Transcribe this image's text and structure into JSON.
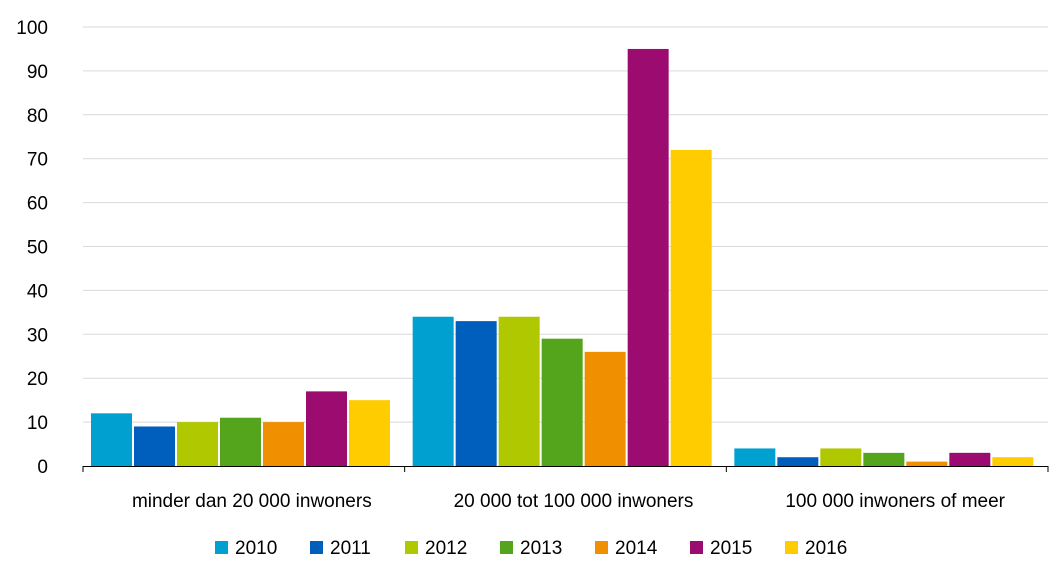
{
  "chart_data": {
    "type": "bar",
    "categories": [
      "minder dan 20 000 inwoners",
      "20 000 tot 100 000 inwoners",
      "100 000 inwoners of meer"
    ],
    "series": [
      {
        "name": "2010",
        "color": "#00a0d0",
        "values": [
          12,
          34,
          4
        ]
      },
      {
        "name": "2011",
        "color": "#005ebd",
        "values": [
          9,
          33,
          2
        ]
      },
      {
        "name": "2012",
        "color": "#b0c800",
        "values": [
          10,
          34,
          4
        ]
      },
      {
        "name": "2013",
        "color": "#55a51c",
        "values": [
          11,
          29,
          3
        ]
      },
      {
        "name": "2014",
        "color": "#f09000",
        "values": [
          10,
          26,
          1
        ]
      },
      {
        "name": "2015",
        "color": "#9c0c70",
        "values": [
          17,
          95,
          3
        ]
      },
      {
        "name": "2016",
        "color": "#ffcc00",
        "values": [
          15,
          72,
          2
        ]
      }
    ],
    "yticks": [
      "0",
      "10",
      "20",
      "30",
      "40",
      "50",
      "60",
      "70",
      "80",
      "90",
      "100"
    ],
    "ylim": [
      0,
      100
    ],
    "grid": true,
    "legend_position": "bottom"
  }
}
